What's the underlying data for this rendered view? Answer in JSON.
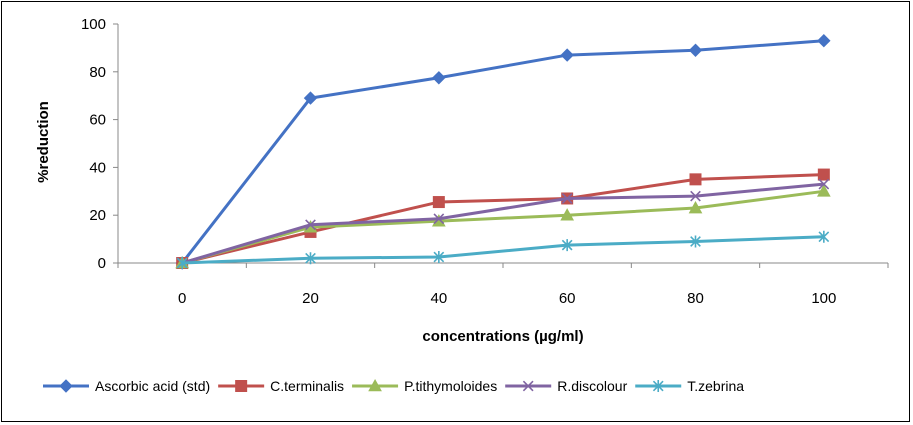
{
  "chart_data": {
    "type": "line",
    "title": "",
    "xlabel": "concentrations (µg/ml)",
    "ylabel": "%reduction",
    "categories": [
      "0",
      "20",
      "40",
      "60",
      "80",
      "100"
    ],
    "ylim": [
      0,
      100
    ],
    "yticks": [
      "0",
      "20",
      "40",
      "60",
      "80",
      "100"
    ],
    "grid": false,
    "legend_position": "bottom",
    "series": [
      {
        "name": "Ascorbic acid (std)",
        "color": "#4472c4",
        "marker": "diamond",
        "values": [
          0,
          69,
          77.5,
          87,
          89,
          93
        ]
      },
      {
        "name": "C.terminalis",
        "color": "#c0504d",
        "marker": "square",
        "values": [
          0,
          13,
          25.5,
          27,
          35,
          37
        ]
      },
      {
        "name": "P.tithymoloides",
        "color": "#9bbb59",
        "marker": "triangle",
        "values": [
          0,
          15,
          17.5,
          20,
          23,
          30
        ]
      },
      {
        "name": "R.discolour",
        "color": "#8064a2",
        "marker": "x",
        "values": [
          0,
          16,
          18.5,
          27,
          28,
          33
        ]
      },
      {
        "name": "T.zebrina",
        "color": "#4bacc6",
        "marker": "asterisk",
        "values": [
          0,
          2,
          2.5,
          7.5,
          9,
          11
        ]
      }
    ]
  }
}
